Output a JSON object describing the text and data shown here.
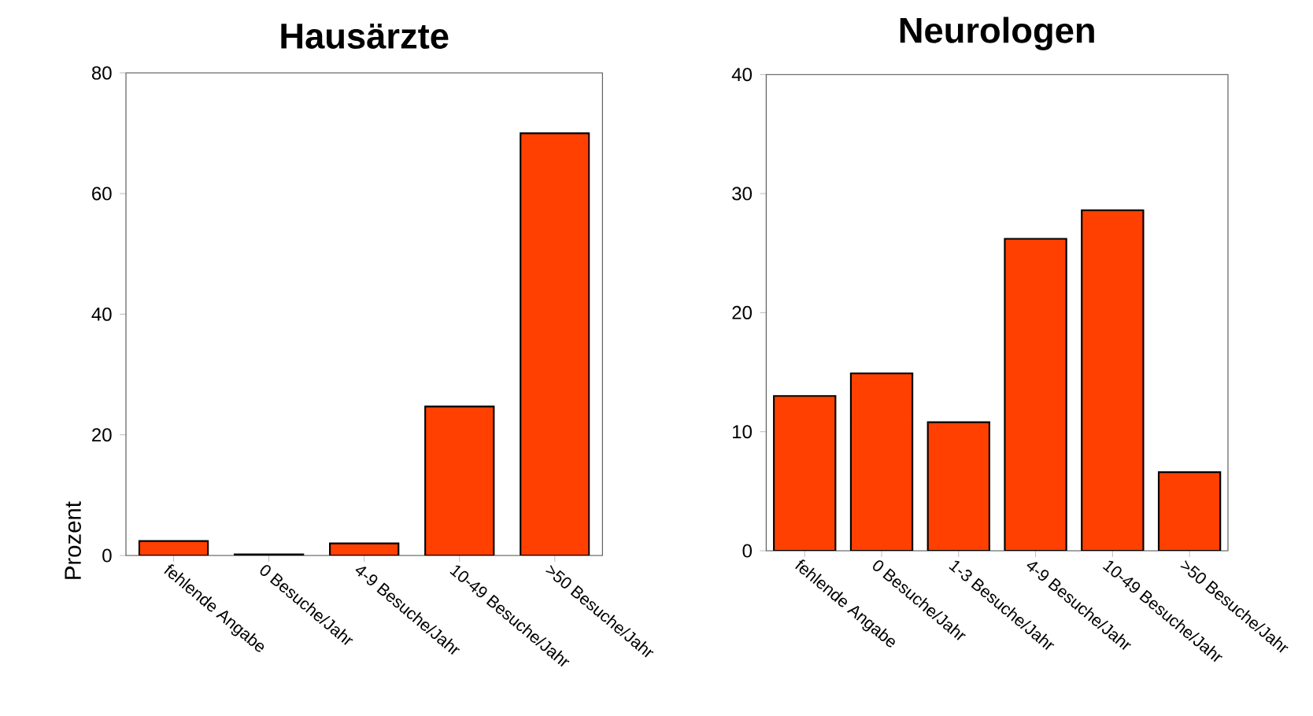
{
  "chart_data": [
    {
      "type": "bar",
      "title": "Hausärzte",
      "ylabel": "Prozent",
      "categories": [
        "fehlende Angabe",
        "0 Besuche/Jahr",
        "4-9 Besuche/Jahr",
        "10-49 Besuche/Jahr",
        ">50 Besuche/Jahr"
      ],
      "values": [
        2.4,
        0.2,
        2.0,
        24.7,
        70.0
      ],
      "color": "#ff4000",
      "ylim": [
        0,
        80
      ],
      "yticks": [
        0,
        20,
        40,
        60,
        80
      ]
    },
    {
      "type": "bar",
      "title": "Neurologen",
      "categories": [
        "fehlende Angabe",
        "0 Besuche/Jahr",
        "1-3 Besuche/Jahr",
        "4-9 Besuche/Jahr",
        "10-49 Besuche/Jahr",
        ">50 Besuche/Jahr"
      ],
      "values": [
        13.0,
        14.9,
        10.8,
        26.2,
        28.6,
        6.6
      ],
      "color": "#ff4000",
      "ylim": [
        0,
        40
      ],
      "yticks": [
        0,
        10,
        20,
        30,
        40
      ]
    }
  ]
}
